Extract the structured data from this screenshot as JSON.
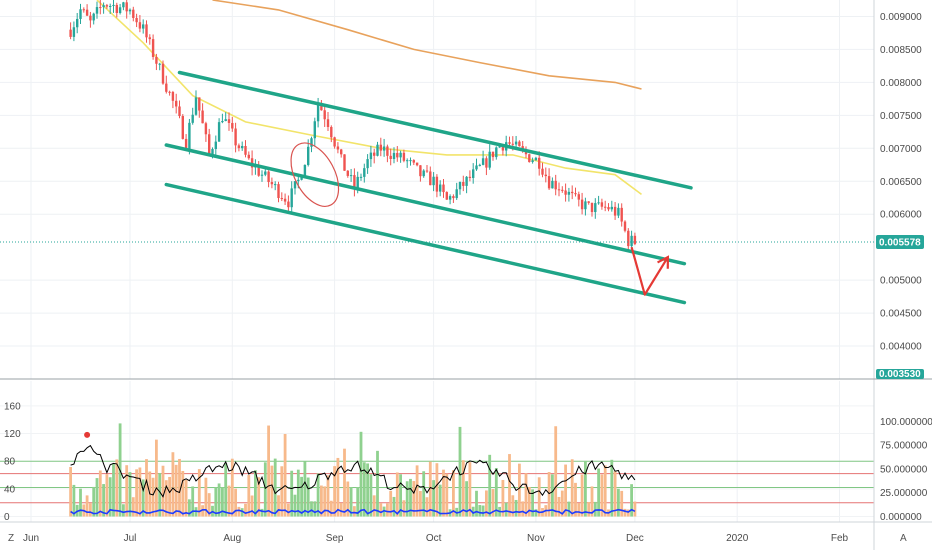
{
  "chart_data": [
    {
      "type": "candlestick",
      "x_ticks": [
        "Jun",
        "Jul",
        "Aug",
        "Sep",
        "Oct",
        "Nov",
        "Dec",
        "2020",
        "Feb"
      ],
      "ylim": [
        0.0035,
        0.00925
      ],
      "y_ticks": [
        "0.009000",
        "0.008500",
        "0.008000",
        "0.007500",
        "0.007000",
        "0.006500",
        "0.006000",
        "0.005000",
        "0.004500",
        "0.004000"
      ],
      "y_tick_values": [
        0.009,
        0.0085,
        0.008,
        0.0075,
        0.007,
        0.0065,
        0.006,
        0.005,
        0.0045,
        0.004
      ],
      "last_price_label": "0.005578",
      "last_price": 0.005578,
      "bottom_price_label": "0.003530",
      "bottom_price": 0.00353,
      "colors": {
        "up": "#26a69a",
        "down": "#ef5350",
        "channel": "#1fa588",
        "arrow": "#e53935",
        "ma_fast": "#f2e46a",
        "ma_slow": "#e8a25c"
      },
      "close_path": [
        [
          "2019-06-13",
          0.0088
        ],
        [
          "2019-06-16",
          0.0091
        ],
        [
          "2019-06-19",
          0.0089
        ],
        [
          "2019-06-23",
          0.0092
        ],
        [
          "2019-07-01",
          0.0091
        ],
        [
          "2019-07-05",
          0.0088
        ],
        [
          "2019-07-10",
          0.0082
        ],
        [
          "2019-07-14",
          0.0077
        ],
        [
          "2019-07-18",
          0.0071
        ],
        [
          "2019-07-21",
          0.0078
        ],
        [
          "2019-07-25",
          0.0069
        ],
        [
          "2019-07-29",
          0.0075
        ],
        [
          "2019-08-02",
          0.0071
        ],
        [
          "2019-08-06",
          0.0068
        ],
        [
          "2019-08-10",
          0.0066
        ],
        [
          "2019-08-14",
          0.0064
        ],
        [
          "2019-08-18",
          0.0062
        ],
        [
          "2019-08-21",
          0.0065
        ],
        [
          "2019-08-24",
          0.007
        ],
        [
          "2019-08-27",
          0.0077
        ],
        [
          "2019-08-30",
          0.0074
        ],
        [
          "2019-09-03",
          0.0068
        ],
        [
          "2019-09-07",
          0.0064
        ],
        [
          "2019-09-11",
          0.0068
        ],
        [
          "2019-09-15",
          0.007
        ],
        [
          "2019-09-19",
          0.0069
        ],
        [
          "2019-09-23",
          0.0068
        ],
        [
          "2019-09-27",
          0.0066
        ],
        [
          "2019-10-01",
          0.0065
        ],
        [
          "2019-10-05",
          0.0062
        ],
        [
          "2019-10-09",
          0.0064
        ],
        [
          "2019-10-13",
          0.0066
        ],
        [
          "2019-10-17",
          0.0068
        ],
        [
          "2019-10-20",
          0.007
        ],
        [
          "2019-10-23",
          0.0071
        ],
        [
          "2019-10-26",
          0.007
        ],
        [
          "2019-10-29",
          0.0069
        ],
        [
          "2019-11-02",
          0.0068
        ],
        [
          "2019-11-05",
          0.0065
        ],
        [
          "2019-11-09",
          0.0064
        ],
        [
          "2019-11-13",
          0.0062
        ],
        [
          "2019-11-17",
          0.0061
        ],
        [
          "2019-11-20",
          0.0061
        ],
        [
          "2019-11-23",
          0.0061
        ],
        [
          "2019-11-26",
          0.006
        ],
        [
          "2019-11-29",
          0.0056
        ],
        [
          "2019-12-01",
          0.00558
        ]
      ],
      "ma_fast_path": [
        [
          "2019-06-21",
          0.00925
        ],
        [
          "2019-07-05",
          0.0086
        ],
        [
          "2019-07-20",
          0.0078
        ],
        [
          "2019-08-05",
          0.0074
        ],
        [
          "2019-08-25",
          0.0072
        ],
        [
          "2019-09-15",
          0.007
        ],
        [
          "2019-10-05",
          0.0069
        ],
        [
          "2019-10-25",
          0.0069
        ],
        [
          "2019-11-10",
          0.0067
        ],
        [
          "2019-11-25",
          0.0066
        ],
        [
          "2019-12-03",
          0.0063
        ]
      ],
      "ma_slow_path": [
        [
          "2019-07-26",
          0.00925
        ],
        [
          "2019-08-15",
          0.0091
        ],
        [
          "2019-09-05",
          0.0088
        ],
        [
          "2019-09-25",
          0.0085
        ],
        [
          "2019-10-15",
          0.0083
        ],
        [
          "2019-11-05",
          0.0081
        ],
        [
          "2019-11-25",
          0.008
        ],
        [
          "2019-12-03",
          0.0079
        ]
      ],
      "channel_lines": [
        {
          "from": [
            "2019-07-16",
            0.00815
          ],
          "to": [
            "2019-12-18",
            0.0064
          ]
        },
        {
          "from": [
            "2019-07-12",
            0.00705
          ],
          "to": [
            "2019-12-16",
            0.00525
          ]
        },
        {
          "from": [
            "2019-07-12",
            0.00645
          ],
          "to": [
            "2019-12-16",
            0.00466
          ]
        }
      ],
      "ellipse_region": {
        "center": [
          "2019-08-26",
          0.0066
        ],
        "date_half_width_days": 6,
        "price_half_height": 0.00052
      },
      "arrow_path": [
        [
          "2019-11-30",
          0.0055
        ],
        [
          "2019-12-04",
          0.00478
        ],
        [
          "2019-12-11",
          0.00535
        ]
      ]
    },
    {
      "type": "bar",
      "ylim": [
        -5,
        180
      ],
      "y_ticks_left": [
        "160",
        "120",
        "80",
        "40",
        "0"
      ],
      "y_tick_left_values": [
        160,
        120,
        80,
        40,
        0
      ],
      "y_ticks_right": [
        "100.000000",
        "75.000000",
        "50.000000",
        "25.000000",
        "0.000000"
      ],
      "y_tick_right_values": [
        100,
        75,
        50,
        25,
        0
      ],
      "reference_lines": [
        {
          "value": 62,
          "color": "#e57373"
        },
        {
          "value": 20,
          "color": "#e57373"
        },
        {
          "value": 42,
          "color": "#81c784"
        },
        {
          "value": 80,
          "color": "#81c784"
        }
      ],
      "volume_colors": {
        "up": "#8fd18f",
        "down": "#f7b98b"
      },
      "line_colors": {
        "main": "#000000",
        "blue": "#1e3cff"
      },
      "marker_color": "#e53935"
    }
  ],
  "corner_labels": {
    "left": "Z",
    "right": "A"
  }
}
